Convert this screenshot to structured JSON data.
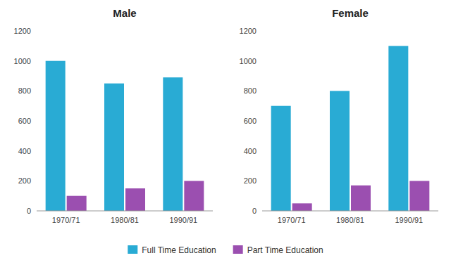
{
  "chart_data": [
    {
      "type": "bar",
      "title": "Male",
      "categories": [
        "1970/71",
        "1980/81",
        "1990/91"
      ],
      "series": [
        {
          "name": "Full Time Education",
          "color": "#29ABD4",
          "values": [
            1000,
            850,
            890
          ]
        },
        {
          "name": "Part Time Education",
          "color": "#9B4FB0",
          "values": [
            100,
            150,
            200
          ]
        }
      ],
      "ylim": [
        0,
        1200
      ],
      "yticks": [
        0,
        200,
        400,
        600,
        800,
        1000,
        1200
      ],
      "grid": false,
      "legend": "bottom"
    },
    {
      "type": "bar",
      "title": "Female",
      "categories": [
        "1970/71",
        "1980/81",
        "1990/91"
      ],
      "series": [
        {
          "name": "Full Time Education",
          "color": "#29ABD4",
          "values": [
            700,
            800,
            1100
          ]
        },
        {
          "name": "Part Time Education",
          "color": "#9B4FB0",
          "values": [
            50,
            170,
            200
          ]
        }
      ],
      "ylim": [
        0,
        1200
      ],
      "yticks": [
        0,
        200,
        400,
        600,
        800,
        1000,
        1200
      ],
      "grid": false,
      "legend": "bottom"
    }
  ]
}
